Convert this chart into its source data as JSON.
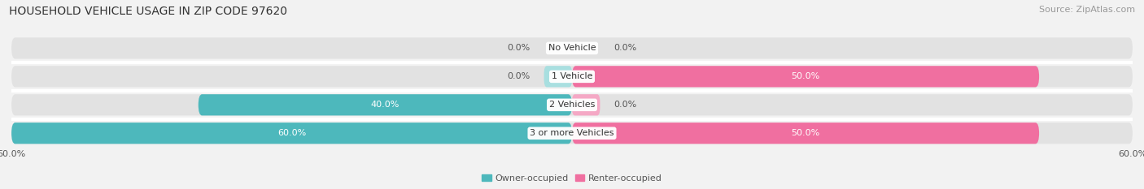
{
  "title": "HOUSEHOLD VEHICLE USAGE IN ZIP CODE 97620",
  "source": "Source: ZipAtlas.com",
  "categories": [
    "No Vehicle",
    "1 Vehicle",
    "2 Vehicles",
    "3 or more Vehicles"
  ],
  "owner_values": [
    0.0,
    0.0,
    40.0,
    60.0
  ],
  "renter_values": [
    0.0,
    50.0,
    0.0,
    50.0
  ],
  "owner_color": "#4db8bc",
  "renter_color": "#f06fa0",
  "renter_color_light": "#f5a8c5",
  "owner_color_light": "#a8dfe0",
  "background_color": "#f2f2f2",
  "bar_background_color": "#e2e2e2",
  "xlim_min": -60,
  "xlim_max": 60,
  "bar_height": 0.75,
  "title_fontsize": 10,
  "source_fontsize": 8,
  "label_fontsize": 8,
  "tick_fontsize": 8,
  "legend_fontsize": 8
}
